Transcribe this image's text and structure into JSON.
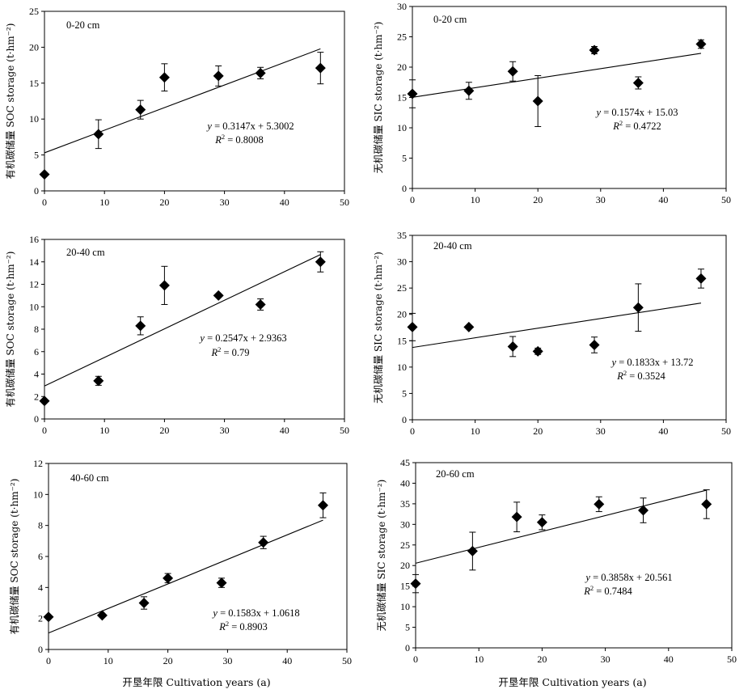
{
  "x_axis_label": "开垦年限 Cultivation years (a)",
  "chart_data": [
    {
      "type": "scatter",
      "depth_label": "0-20 cm",
      "ylabel": "有机碳储量 SOC storage (t·hm⁻²)",
      "xlim": [
        0,
        50
      ],
      "xticks": [
        0,
        10,
        20,
        30,
        40,
        50
      ],
      "ylim": [
        0,
        25
      ],
      "yticks": [
        0,
        5,
        10,
        15,
        20,
        25
      ],
      "points": [
        {
          "x": 0,
          "y": 2.3,
          "err": 0
        },
        {
          "x": 9,
          "y": 7.9,
          "err": 2.0
        },
        {
          "x": 16,
          "y": 11.3,
          "err": 1.3
        },
        {
          "x": 20,
          "y": 15.8,
          "err": 1.9
        },
        {
          "x": 29,
          "y": 16.0,
          "err": 1.4
        },
        {
          "x": 36,
          "y": 16.4,
          "err": 0.8
        },
        {
          "x": 46,
          "y": 17.1,
          "err": 2.2
        }
      ],
      "fit": {
        "slope": 0.3147,
        "intercept": 5.3002,
        "x_range": [
          0,
          46
        ]
      },
      "equation": {
        "prefix": "y",
        "text": " = 0.3147x + 5.3002"
      },
      "r2": {
        "prefix": "R",
        "sup": "2",
        "text": " = 0.8008"
      }
    },
    {
      "type": "scatter",
      "depth_label": "0-20 cm",
      "ylabel": "无机碳储量 SIC storage (t·hm⁻²)",
      "xlim": [
        0,
        50
      ],
      "xticks": [
        0,
        10,
        20,
        30,
        40,
        50
      ],
      "ylim": [
        0,
        30
      ],
      "yticks": [
        0,
        5,
        10,
        15,
        20,
        25,
        30
      ],
      "points": [
        {
          "x": 0,
          "y": 15.6,
          "err": 2.3
        },
        {
          "x": 9,
          "y": 16.1,
          "err": 1.4
        },
        {
          "x": 16,
          "y": 19.3,
          "err": 1.6
        },
        {
          "x": 20,
          "y": 14.4,
          "err": 4.2
        },
        {
          "x": 29,
          "y": 22.8,
          "err": 0.6
        },
        {
          "x": 36,
          "y": 17.4,
          "err": 1.0
        },
        {
          "x": 46,
          "y": 23.8,
          "err": 0.7
        }
      ],
      "fit": {
        "slope": 0.1574,
        "intercept": 15.03,
        "x_range": [
          0,
          46
        ]
      },
      "equation": {
        "prefix": "y",
        "text": " = 0.1574x + 15.03"
      },
      "r2": {
        "prefix": "R",
        "sup": "2",
        "text": " = 0.4722"
      }
    },
    {
      "type": "scatter",
      "depth_label": "20-40 cm",
      "ylabel": "有机碳储量 SOC storage (t·hm⁻²)",
      "xlim": [
        0,
        50
      ],
      "xticks": [
        0,
        10,
        20,
        30,
        40,
        50
      ],
      "ylim": [
        0,
        16
      ],
      "yticks": [
        0,
        2,
        4,
        6,
        8,
        10,
        12,
        14,
        16
      ],
      "points": [
        {
          "x": 0,
          "y": 1.6,
          "err": 0
        },
        {
          "x": 9,
          "y": 3.4,
          "err": 0.4
        },
        {
          "x": 16,
          "y": 8.3,
          "err": 0.8
        },
        {
          "x": 20,
          "y": 11.9,
          "err": 1.7
        },
        {
          "x": 29,
          "y": 11.0,
          "err": 0
        },
        {
          "x": 36,
          "y": 10.2,
          "err": 0.5
        },
        {
          "x": 46,
          "y": 14.0,
          "err": 0.9
        }
      ],
      "fit": {
        "slope": 0.2547,
        "intercept": 2.9363,
        "x_range": [
          0,
          46
        ]
      },
      "equation": {
        "prefix": "y",
        "text": " = 0.2547x + 2.9363"
      },
      "r2": {
        "prefix": "R",
        "sup": "2",
        "text": " = 0.79"
      }
    },
    {
      "type": "scatter",
      "depth_label": "20-40 cm",
      "ylabel": "无机碳储量 SIC storage (t·hm⁻²)",
      "xlim": [
        0,
        50
      ],
      "xticks": [
        0,
        10,
        20,
        30,
        40,
        50
      ],
      "ylim": [
        0,
        35
      ],
      "yticks": [
        0,
        5,
        10,
        15,
        20,
        25,
        30,
        35
      ],
      "points": [
        {
          "x": 0,
          "y": 17.6,
          "err": 2.6
        },
        {
          "x": 9,
          "y": 17.6,
          "err": 0
        },
        {
          "x": 16,
          "y": 13.9,
          "err": 1.9
        },
        {
          "x": 20,
          "y": 13.0,
          "err": 0.6
        },
        {
          "x": 29,
          "y": 14.2,
          "err": 1.5
        },
        {
          "x": 36,
          "y": 21.3,
          "err": 4.5
        },
        {
          "x": 46,
          "y": 26.8,
          "err": 1.8
        }
      ],
      "fit": {
        "slope": 0.1833,
        "intercept": 13.72,
        "x_range": [
          0,
          46
        ]
      },
      "equation": {
        "prefix": "y",
        "text": " = 0.1833x + 13.72"
      },
      "r2": {
        "prefix": "R",
        "sup": "2",
        "text": " = 0.3524"
      }
    },
    {
      "type": "scatter",
      "depth_label": "40-60 cm",
      "ylabel": "有机碳储量 SOC storage (t·hm⁻²)",
      "xlim": [
        0,
        50
      ],
      "xticks": [
        0,
        10,
        20,
        30,
        40,
        50
      ],
      "ylim": [
        0,
        12
      ],
      "yticks": [
        0,
        2,
        4,
        6,
        8,
        10,
        12
      ],
      "points": [
        {
          "x": 0,
          "y": 2.1,
          "err": 0
        },
        {
          "x": 9,
          "y": 2.2,
          "err": 0
        },
        {
          "x": 16,
          "y": 3.0,
          "err": 0.4
        },
        {
          "x": 20,
          "y": 4.6,
          "err": 0.3
        },
        {
          "x": 29,
          "y": 4.3,
          "err": 0.3
        },
        {
          "x": 36,
          "y": 6.9,
          "err": 0.4
        },
        {
          "x": 46,
          "y": 9.3,
          "err": 0.8
        }
      ],
      "fit": {
        "slope": 0.1583,
        "intercept": 1.0618,
        "x_range": [
          0,
          46
        ]
      },
      "equation": {
        "prefix": "y",
        "text": " = 0.1583x + 1.0618"
      },
      "r2": {
        "prefix": "R",
        "sup": "2",
        "text": " = 0.8903"
      }
    },
    {
      "type": "scatter",
      "depth_label": "20-60 cm",
      "ylabel": "无机碳储量 SIC storage (t·hm⁻²)",
      "xlim": [
        0,
        50
      ],
      "xticks": [
        0,
        10,
        20,
        30,
        40,
        50
      ],
      "ylim": [
        0,
        45
      ],
      "yticks": [
        0,
        5,
        10,
        15,
        20,
        25,
        30,
        35,
        40,
        45
      ],
      "points": [
        {
          "x": 0,
          "y": 15.6,
          "err": 2.2
        },
        {
          "x": 9,
          "y": 23.5,
          "err": 4.6
        },
        {
          "x": 16,
          "y": 31.8,
          "err": 3.6
        },
        {
          "x": 20,
          "y": 30.5,
          "err": 1.8
        },
        {
          "x": 29,
          "y": 34.9,
          "err": 1.8
        },
        {
          "x": 36,
          "y": 33.4,
          "err": 3.0
        },
        {
          "x": 46,
          "y": 34.9,
          "err": 3.5
        }
      ],
      "fit": {
        "slope": 0.3858,
        "intercept": 20.561,
        "x_range": [
          0,
          46
        ]
      },
      "equation": {
        "prefix": "y",
        "text": " = 0.3858x + 20.561"
      },
      "r2": {
        "prefix": "R",
        "sup": "2",
        "text": " = 0.7484"
      }
    }
  ]
}
